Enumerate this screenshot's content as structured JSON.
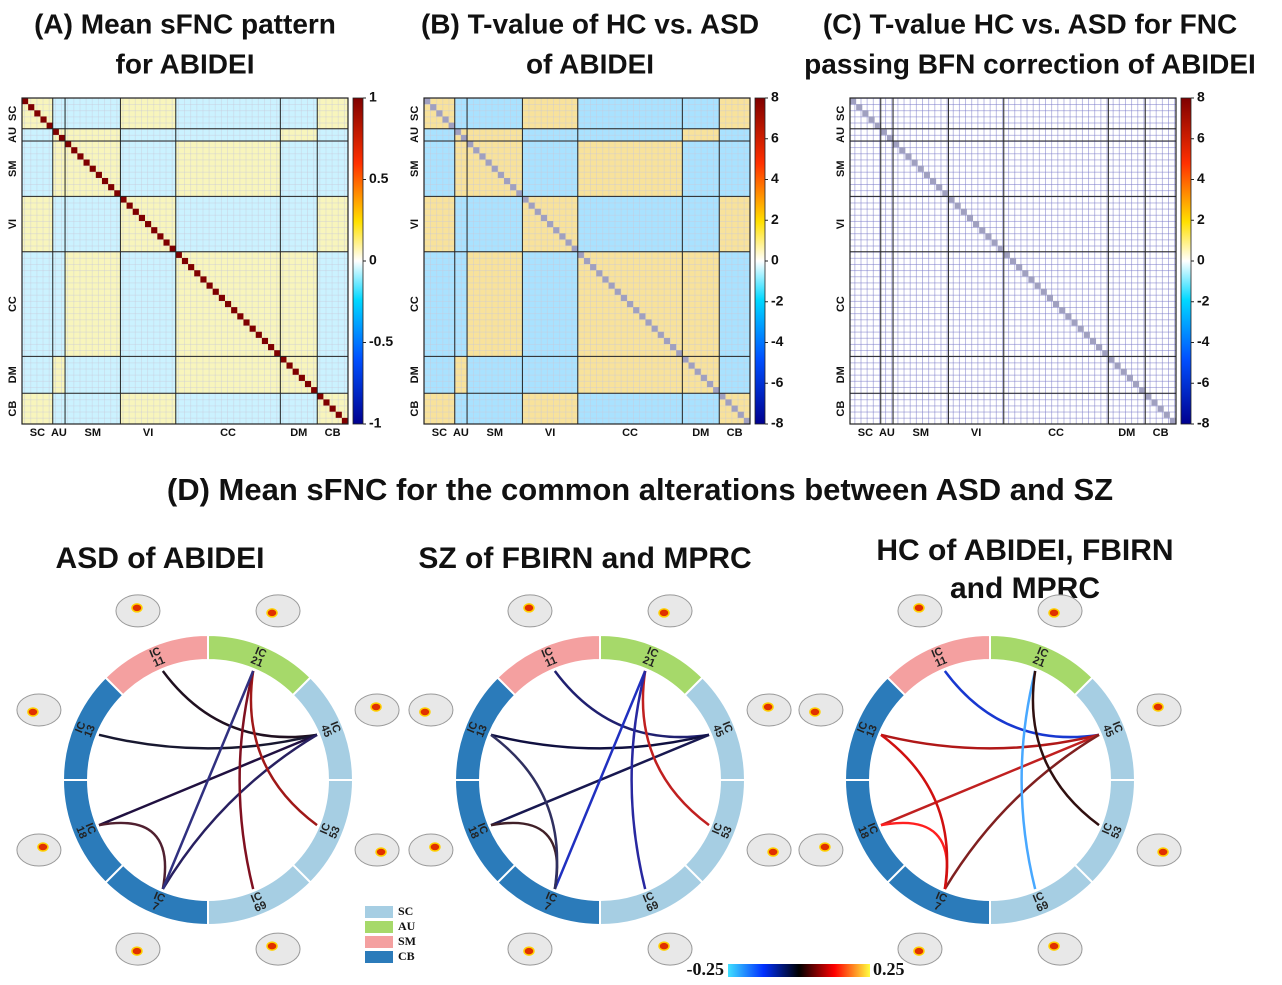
{
  "panels": [
    {
      "title_lines": [
        "(A) Mean sFNC pattern",
        "for ABIDEI"
      ],
      "groups": [
        "SC",
        "AU",
        "SM",
        "VI",
        "CC",
        "DM",
        "CB"
      ],
      "colorbar_ticks": [
        "1",
        "0.5",
        "0",
        "-0.5",
        "-1"
      ]
    },
    {
      "title_lines": [
        "(B) T-value of HC vs. ASD",
        "of ABIDEI"
      ],
      "groups": [
        "SC",
        "AU",
        "SM",
        "VI",
        "CC",
        "DM",
        "CB"
      ],
      "colorbar_ticks": [
        "8",
        "6",
        "4",
        "2",
        "0",
        "-2",
        "-4",
        "-6",
        "-8"
      ]
    },
    {
      "title_lines": [
        "(C) T-value HC vs. ASD for FNC",
        "passing BFN correction of ABIDEI"
      ],
      "groups": [
        "SC",
        "AU",
        "SM",
        "VI",
        "CC",
        "DM",
        "CB"
      ],
      "colorbar_ticks": [
        "8",
        "6",
        "4",
        "2",
        "0",
        "-2",
        "-4",
        "-6",
        "-8"
      ]
    }
  ],
  "section_d": {
    "title": "(D) Mean sFNC for the common alterations between ASD and SZ",
    "circles": [
      {
        "title_lines": [
          "ASD of ABIDEI"
        ]
      },
      {
        "title_lines": [
          "SZ of FBIRN and MPRC"
        ]
      },
      {
        "title_lines": [
          "HC of ABIDEI, FBIRN",
          "and MPRC"
        ]
      }
    ],
    "segments": [
      {
        "line1": "IC",
        "line2": "21"
      },
      {
        "line1": "IC",
        "line2": "45"
      },
      {
        "line1": "IC",
        "line2": "53"
      },
      {
        "line1": "IC",
        "line2": "69"
      },
      {
        "line1": "IC",
        "line2": "7"
      },
      {
        "line1": "IC",
        "line2": "18"
      },
      {
        "line1": "IC",
        "line2": "13"
      },
      {
        "line1": "IC",
        "line2": "11"
      }
    ],
    "legend": [
      "SC",
      "AU",
      "SM",
      "CB"
    ],
    "colorbar_labels": [
      "-0.25",
      "0.25"
    ]
  }
}
